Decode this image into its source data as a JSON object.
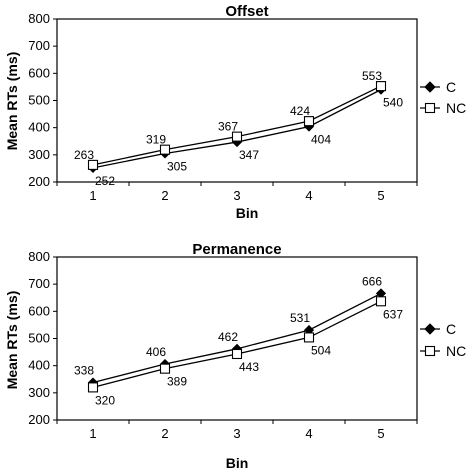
{
  "chart_data": [
    {
      "type": "line",
      "title": "Offset",
      "xlabel": "Bin",
      "ylabel": "Mean RTs (ms)",
      "categories": [
        "1",
        "2",
        "3",
        "4",
        "5"
      ],
      "ylim": [
        200,
        800
      ],
      "yticks": [
        "200",
        "300",
        "400",
        "500",
        "600",
        "700",
        "800"
      ],
      "grid": false,
      "legend_position": "right",
      "series": [
        {
          "name": "C",
          "marker": "filled-diamond",
          "values": [
            252,
            305,
            347,
            404,
            540
          ],
          "labels": [
            "252",
            "305",
            "347",
            "404",
            "540"
          ]
        },
        {
          "name": "NC",
          "marker": "open-square",
          "values": [
            263,
            319,
            367,
            424,
            553
          ],
          "labels": [
            "263",
            "319",
            "367",
            "424",
            "553"
          ]
        }
      ]
    },
    {
      "type": "line",
      "title": "Permanence",
      "xlabel": "Bin",
      "ylabel": "Mean RTs (ms)",
      "categories": [
        "1",
        "2",
        "3",
        "4",
        "5"
      ],
      "ylim": [
        200,
        800
      ],
      "yticks": [
        "200",
        "300",
        "400",
        "500",
        "600",
        "700",
        "800"
      ],
      "grid": false,
      "legend_position": "right",
      "series": [
        {
          "name": "C",
          "marker": "filled-diamond",
          "values": [
            338,
            406,
            462,
            531,
            666
          ],
          "labels": [
            "338",
            "406",
            "462",
            "531",
            "666"
          ]
        },
        {
          "name": "NC",
          "marker": "open-square",
          "values": [
            320,
            389,
            443,
            504,
            637
          ],
          "labels": [
            "320",
            "389",
            "443",
            "504",
            "637"
          ]
        }
      ]
    }
  ]
}
